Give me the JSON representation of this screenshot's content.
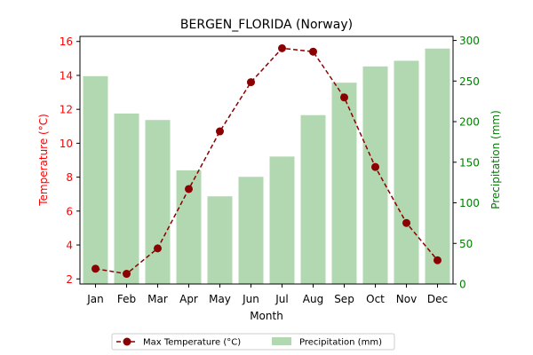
{
  "chart_data": {
    "type": "bar+line",
    "title": "BERGEN_FLORIDA (Norway)",
    "xlabel": "Month",
    "ylabel_left": "Temperature (°C)",
    "ylabel_right": "Precipitation (mm)",
    "categories": [
      "Jan",
      "Feb",
      "Mar",
      "Apr",
      "May",
      "Jun",
      "Jul",
      "Aug",
      "Sep",
      "Oct",
      "Nov",
      "Dec"
    ],
    "left_axis": {
      "range": [
        1.7,
        16.3
      ],
      "ticks": [
        2,
        4,
        6,
        8,
        10,
        12,
        14,
        16
      ],
      "color": "#ff0000"
    },
    "right_axis": {
      "range": [
        0,
        305
      ],
      "ticks": [
        0,
        50,
        100,
        150,
        200,
        250,
        300
      ],
      "color": "#008000"
    },
    "series": [
      {
        "name": "Max Temperature (°C)",
        "kind": "line",
        "axis": "left",
        "color": "#8b0000",
        "style": "dashed",
        "marker": "circle",
        "values": [
          2.6,
          2.3,
          3.8,
          7.3,
          10.7,
          13.6,
          15.6,
          15.4,
          12.7,
          8.6,
          5.3,
          3.1
        ]
      },
      {
        "name": "Precipitation (mm)",
        "kind": "bar",
        "axis": "right",
        "color": "#b2d8b2",
        "values": [
          256,
          210,
          202,
          140,
          108,
          132,
          157,
          208,
          248,
          268,
          275,
          290
        ]
      }
    ],
    "legend_position": "bottom-center",
    "grid": false
  }
}
